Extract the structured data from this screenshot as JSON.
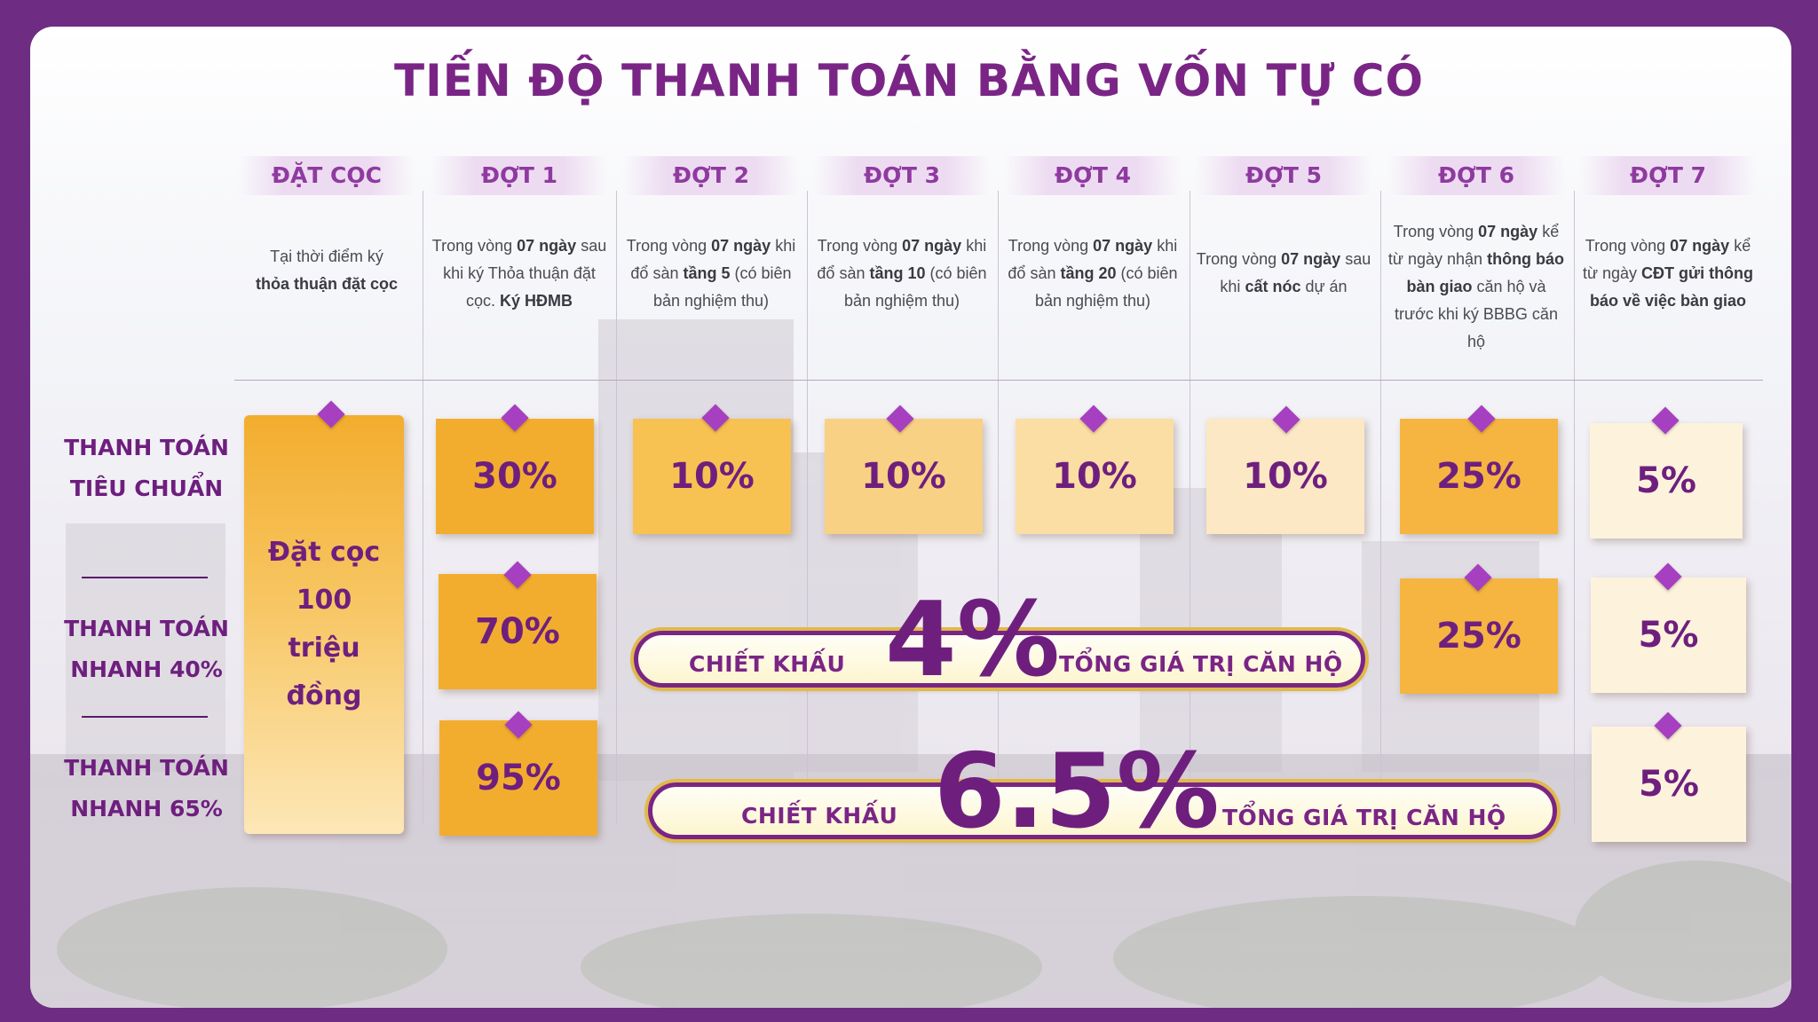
{
  "title": "TIẾN ĐỘ THANH TOÁN BẰNG VỐN TỰ CÓ",
  "columns": [
    {
      "header": "ĐẶT CỌC",
      "desc": [
        "Tại thời điểm ký ",
        "<b>thỏa thuận đặt cọc</b>"
      ]
    },
    {
      "header": "ĐỢT 1"
    },
    {
      "header": "ĐỢT 2"
    },
    {
      "header": "ĐỢT 3"
    },
    {
      "header": "ĐỢT 4"
    },
    {
      "header": "ĐỢT 5"
    },
    {
      "header": "ĐỢT 6"
    },
    {
      "header": "ĐỢT 7"
    }
  ],
  "descriptions": {
    "d0_a": "Tại thời điểm ký",
    "d0_b": "thỏa thuận đặt cọc",
    "d1_a": "Trong vòng",
    "d1_b": "07 ngày",
    "d1_c": "sau khi ký Thỏa thuận đặt cọc.",
    "d1_d": "Ký HĐMB",
    "d2_a": "Trong vòng",
    "d2_b": "07 ngày",
    "d2_c": "khi đổ sàn",
    "d2_d": "tầng 5",
    "d2_e": "(có biên bản nghiệm thu)",
    "d3_a": "Trong vòng",
    "d3_b": "07 ngày",
    "d3_c": "khi đổ sàn",
    "d3_d": "tầng 10",
    "d3_e": "(có biên bản nghiệm thu)",
    "d4_a": "Trong vòng",
    "d4_b": "07 ngày",
    "d4_c": "khi đổ sàn",
    "d4_d": "tầng 20",
    "d4_e": "(có biên bản nghiệm thu)",
    "d5_a": "Trong vòng",
    "d5_b": "07 ngày",
    "d5_c": "sau khi",
    "d5_d": "cất nóc",
    "d5_e": "dự án",
    "d6_a": "Trong vòng",
    "d6_b": "07 ngày",
    "d6_c": "kể từ ngày nhận",
    "d6_d": "thông báo bàn giao",
    "d6_e": "căn hộ và trước khi ký BBBG căn hộ",
    "d7_a": "Trong vòng",
    "d7_b": "07 ngày",
    "d7_c": "kể từ ngày",
    "d7_d": "CĐT gửi thông báo về việc bàn giao"
  },
  "rows": {
    "standard": {
      "label": "THANH TOÁN TIÊU CHUẨN"
    },
    "fast40": {
      "label": "THANH TOÁN NHANH 40%"
    },
    "fast65": {
      "label": "THANH TOÁN NHANH 65%"
    }
  },
  "deposit_text": "Đặt cọc 100 triệu đồng",
  "cards": {
    "s1": "30%",
    "s2": "10%",
    "s3": "10%",
    "s4": "10%",
    "s5": "10%",
    "s6": "25%",
    "s7": "5%",
    "f40_1": "70%",
    "f40_6": "25%",
    "f40_7": "5%",
    "f65_1": "95%",
    "f65_7": "5%"
  },
  "banners": {
    "b40": {
      "label_left": "CHIẾT KHẤU",
      "value": "4%",
      "label_right": "TỔNG GIÁ TRỊ CĂN HỘ"
    },
    "b65": {
      "label_left": "CHIẾT KHẤU",
      "value": "6.5%",
      "label_right": "TỔNG GIÁ TRỊ CĂN HỘ"
    }
  },
  "colors": {
    "frame": "#6e2c82",
    "accent_text": "#6e1f7e",
    "pin": "#a63fc0",
    "card_dark": "#f3ad2e",
    "card_light": "#fdf3dc"
  }
}
